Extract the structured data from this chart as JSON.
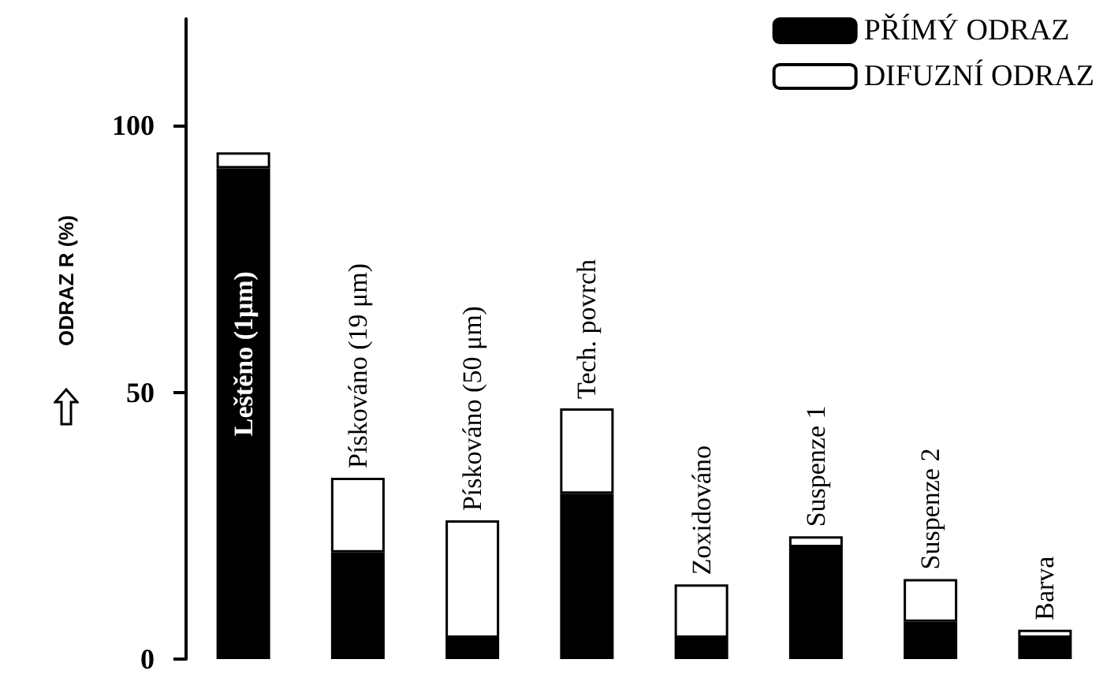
{
  "chart_data": {
    "type": "bar",
    "ylabel": "ODRAZ R (%)",
    "stacked": true,
    "legend": "top right",
    "grid": false,
    "categories": [
      "Leštěno (1μm)",
      "Pískováno (19 μm)",
      "Pískováno (50 μm)",
      "Tech. povrch",
      "Zoxidováno",
      "Suspenze 1",
      "Suspenze 2",
      "Barva"
    ],
    "series": [
      {
        "name": "PŘÍMÝ ODRAZ",
        "color": "#000000",
        "values": [
          92,
          20,
          4,
          31,
          4,
          21,
          7,
          4
        ]
      },
      {
        "name": "DIFUZNÍ ODRAZ",
        "color": "#ffffff",
        "values": [
          3,
          14,
          22,
          16,
          10,
          2,
          8,
          1.5
        ]
      }
    ],
    "ylim": [
      0,
      120
    ],
    "yticks": [
      0,
      50,
      100
    ]
  }
}
